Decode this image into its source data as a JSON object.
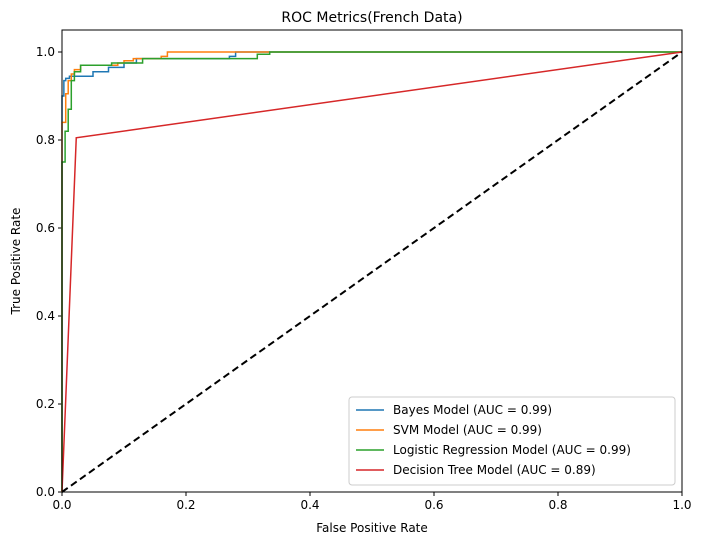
{
  "chart_data": {
    "type": "line",
    "title": "ROC Metrics(French Data)",
    "xlabel": "False Positive Rate",
    "ylabel": "True Positive Rate",
    "xlim": [
      0.0,
      1.0
    ],
    "ylim": [
      0.0,
      1.05
    ],
    "x_ticks": [
      "0.0",
      "0.2",
      "0.4",
      "0.6",
      "0.8",
      "1.0"
    ],
    "y_ticks": [
      "0.0",
      "0.2",
      "0.4",
      "0.6",
      "0.8",
      "1.0"
    ],
    "grid": false,
    "legend_position": "bottom-right",
    "series": [
      {
        "name": "Bayes Model (AUC = 0.99)",
        "color": "#1f77b4",
        "step": true,
        "x": [
          0.0,
          0.0,
          0.003,
          0.003,
          0.006,
          0.006,
          0.012,
          0.012,
          0.02,
          0.02,
          0.05,
          0.05,
          0.075,
          0.075,
          0.1,
          0.1,
          0.12,
          0.12,
          0.27,
          0.27,
          0.28,
          0.28,
          1.0
        ],
        "y": [
          0.0,
          0.9,
          0.9,
          0.935,
          0.935,
          0.94,
          0.94,
          0.945,
          0.945,
          0.945,
          0.945,
          0.955,
          0.955,
          0.965,
          0.965,
          0.975,
          0.975,
          0.985,
          0.985,
          0.99,
          0.99,
          1.0,
          1.0
        ]
      },
      {
        "name": "SVM Model (AUC = 0.99)",
        "color": "#ff7f0e",
        "step": true,
        "x": [
          0.0,
          0.0,
          0.006,
          0.006,
          0.01,
          0.01,
          0.015,
          0.015,
          0.02,
          0.02,
          0.03,
          0.03,
          0.09,
          0.09,
          0.1,
          0.1,
          0.115,
          0.115,
          0.16,
          0.16,
          0.17,
          0.17,
          0.335,
          0.335,
          1.0
        ],
        "y": [
          0.0,
          0.84,
          0.84,
          0.905,
          0.905,
          0.935,
          0.935,
          0.95,
          0.95,
          0.96,
          0.96,
          0.97,
          0.97,
          0.975,
          0.975,
          0.98,
          0.98,
          0.985,
          0.985,
          0.99,
          0.99,
          1.0,
          1.0,
          1.0,
          1.0
        ]
      },
      {
        "name": "Logistic Regression Model (AUC = 0.99)",
        "color": "#2ca02c",
        "step": true,
        "x": [
          0.0,
          0.0,
          0.005,
          0.005,
          0.01,
          0.01,
          0.015,
          0.015,
          0.02,
          0.02,
          0.03,
          0.03,
          0.08,
          0.08,
          0.13,
          0.13,
          0.315,
          0.315,
          0.335,
          0.335,
          1.0
        ],
        "y": [
          0.0,
          0.75,
          0.75,
          0.82,
          0.82,
          0.87,
          0.87,
          0.935,
          0.935,
          0.955,
          0.955,
          0.97,
          0.97,
          0.975,
          0.975,
          0.985,
          0.985,
          0.995,
          0.995,
          1.0,
          1.0
        ]
      },
      {
        "name": "Decision Tree Model (AUC = 0.89)",
        "color": "#d62728",
        "step": false,
        "x": [
          0.0,
          0.023,
          1.0
        ],
        "y": [
          0.0,
          0.805,
          1.0
        ]
      }
    ],
    "reference_line": {
      "x": [
        0.0,
        1.0
      ],
      "y": [
        0.0,
        1.0
      ],
      "color": "#000000",
      "style": "dashed"
    }
  }
}
